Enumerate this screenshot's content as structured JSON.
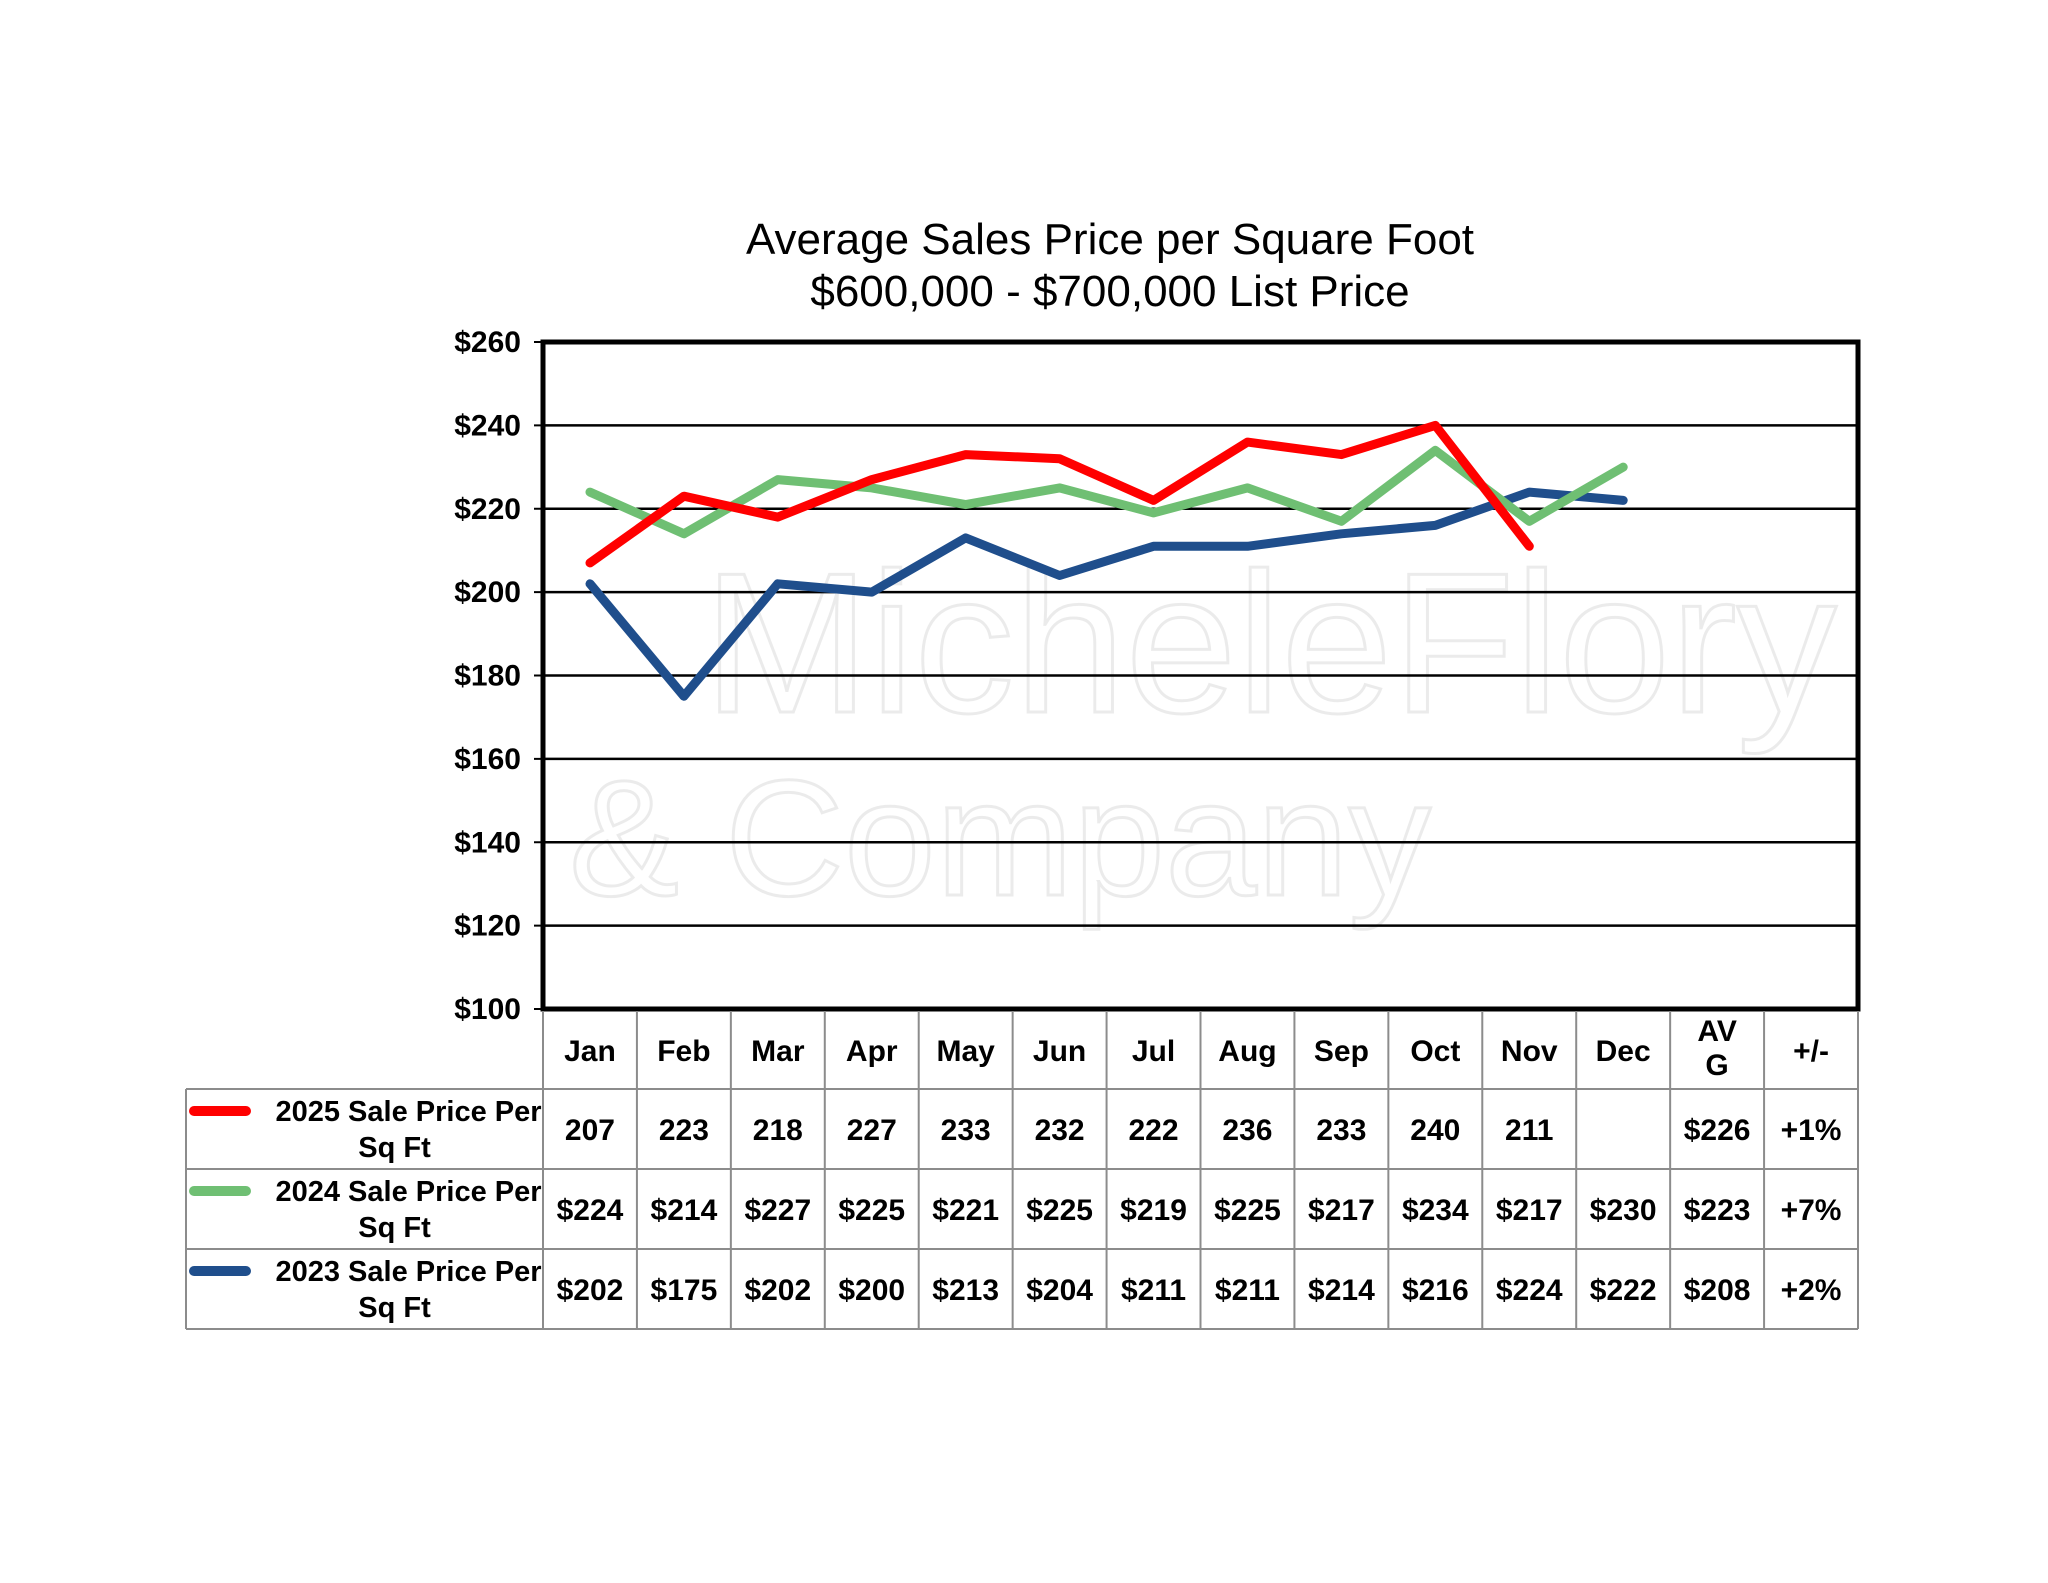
{
  "chart_data": {
    "type": "line",
    "title": "Average Sales Price per Square Foot",
    "subtitle": "$600,000 - $700,000 List Price",
    "ylim": [
      100,
      260
    ],
    "yticks": [
      100,
      120,
      140,
      160,
      180,
      200,
      220,
      240,
      260
    ],
    "ytick_labels": [
      "$100",
      "$120",
      "$140",
      "$160",
      "$180",
      "$200",
      "$220",
      "$240",
      "$260"
    ],
    "grid": true,
    "legend": "data-table",
    "categories": [
      "Jan",
      "Feb",
      "Mar",
      "Apr",
      "May",
      "Jun",
      "Jul",
      "Aug",
      "Sep",
      "Oct",
      "Nov",
      "Dec"
    ],
    "table_extra_headers": [
      "AV G",
      "+/-"
    ],
    "series": [
      {
        "name": "2025 Sale Price Per Sq Ft",
        "color": "#ff0000",
        "values": [
          207,
          223,
          218,
          227,
          233,
          232,
          222,
          236,
          233,
          240,
          211,
          null
        ],
        "table_values": [
          "207",
          "223",
          "218",
          "227",
          "233",
          "232",
          "222",
          "236",
          "233",
          "240",
          "211",
          ""
        ],
        "avg": "$226",
        "change": "+1%"
      },
      {
        "name": "2024 Sale Price Per Sq Ft",
        "color": "#6fbf73",
        "values": [
          224,
          214,
          227,
          225,
          221,
          225,
          219,
          225,
          217,
          234,
          217,
          230
        ],
        "table_values": [
          "$224",
          "$214",
          "$227",
          "$225",
          "$221",
          "$225",
          "$219",
          "$225",
          "$217",
          "$234",
          "$217",
          "$230"
        ],
        "avg": "$223",
        "change": "+7%"
      },
      {
        "name": "2023 Sale Price Per Sq Ft",
        "color": "#1f4e8c",
        "values": [
          202,
          175,
          202,
          200,
          213,
          204,
          211,
          211,
          214,
          216,
          224,
          222
        ],
        "table_values": [
          "$202",
          "$175",
          "$202",
          "$200",
          "$213",
          "$204",
          "$211",
          "$211",
          "$214",
          "$216",
          "$224",
          "$222"
        ],
        "avg": "$208",
        "change": "+2%"
      }
    ],
    "watermark": [
      "MicheleFlory",
      "& Company"
    ]
  }
}
